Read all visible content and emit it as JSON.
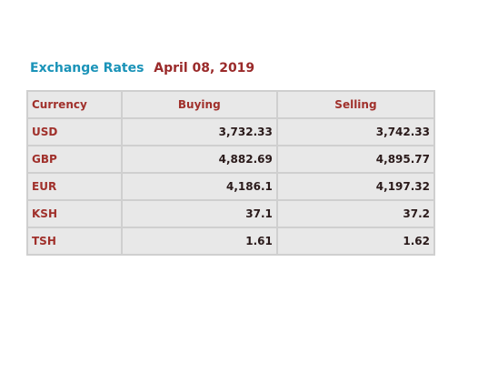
{
  "heading": {
    "title": "Exchange Rates",
    "date": "April 08, 2019"
  },
  "table": {
    "headers": {
      "currency": "Currency",
      "buying": "Buying",
      "selling": "Selling"
    },
    "rows": [
      {
        "currency": "USD",
        "buying": "3,732.33",
        "selling": "3,742.33"
      },
      {
        "currency": "GBP",
        "buying": "4,882.69",
        "selling": "4,895.77"
      },
      {
        "currency": "EUR",
        "buying": "4,186.1",
        "selling": "4,197.32"
      },
      {
        "currency": "KSH",
        "buying": "37.1",
        "selling": "37.2"
      },
      {
        "currency": "TSH",
        "buying": "1.61",
        "selling": "1.62"
      }
    ]
  },
  "colors": {
    "title": "#1a93b8",
    "accent": "#a0302b",
    "table_background": "#e8e8e8",
    "border": "#cfcfcf"
  }
}
